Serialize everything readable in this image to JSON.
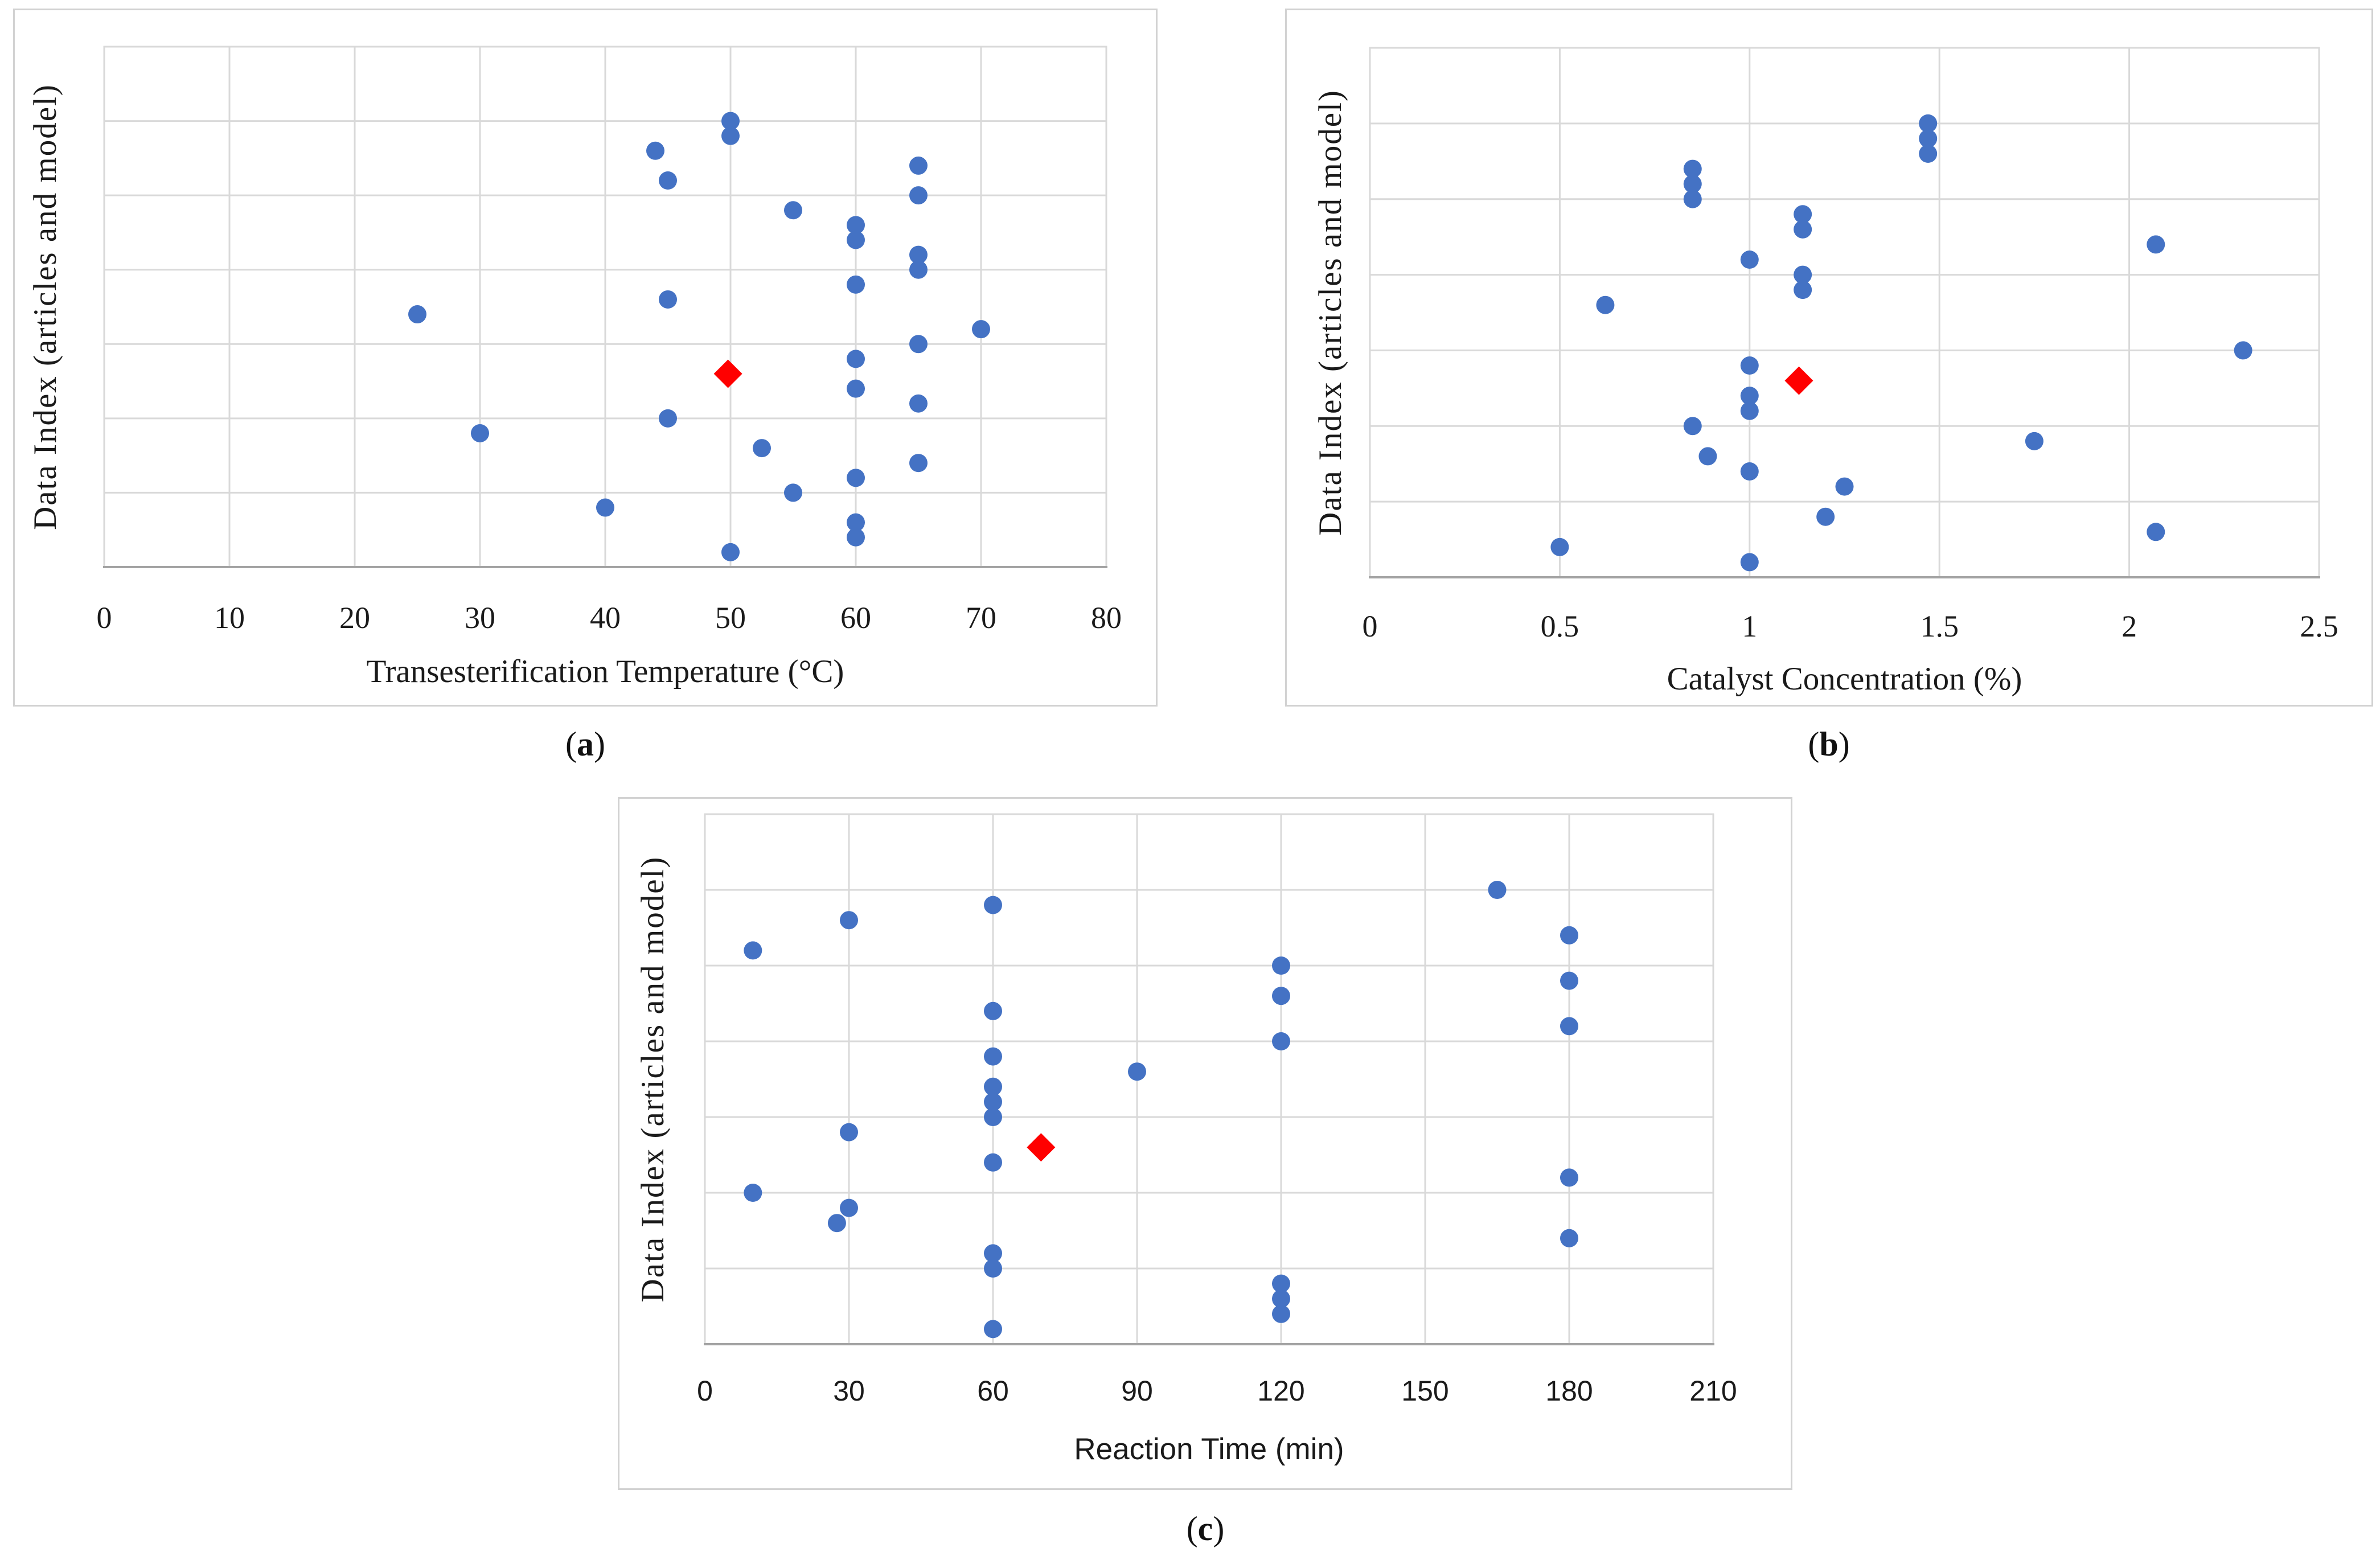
{
  "figure": {
    "colors": {
      "article_marker": "#4472C4",
      "model_marker": "#FF0000",
      "gridline": "#D9D9D9",
      "plot_border": "#D9D9D9",
      "axis_line": "#A3A3A3",
      "text": "#1A1A1A",
      "panel_border": "#D2D2D2"
    },
    "captions": [
      {
        "open": "(",
        "letter": "a",
        "close": ")"
      },
      {
        "open": "(",
        "letter": "b",
        "close": ")"
      },
      {
        "open": "(",
        "letter": "c",
        "close": ")"
      }
    ]
  },
  "chart_data": [
    {
      "id": "a",
      "type": "scatter",
      "title": "",
      "xlabel": "Transesterification Temperature (°C)",
      "ylabel": "Data Index (articles and model)",
      "xlim": [
        0,
        80
      ],
      "xticks": [
        0,
        10,
        20,
        30,
        40,
        50,
        60,
        70,
        80
      ],
      "ylim": [
        0,
        35
      ],
      "y_gridline_step": 5,
      "y_tick_labels_shown": false,
      "grid": true,
      "legend": "none",
      "series": [
        {
          "name": "articles",
          "marker": "circle",
          "color": "#4472C4",
          "points": [
            [
              50,
              30
            ],
            [
              50,
              29
            ],
            [
              44,
              28
            ],
            [
              65,
              27
            ],
            [
              45,
              26
            ],
            [
              65,
              25
            ],
            [
              55,
              24
            ],
            [
              60,
              23
            ],
            [
              60,
              22
            ],
            [
              65,
              21
            ],
            [
              65,
              20
            ],
            [
              60,
              19
            ],
            [
              45,
              18
            ],
            [
              25,
              17
            ],
            [
              70,
              16
            ],
            [
              65,
              15
            ],
            [
              60,
              14
            ],
            [
              60,
              12
            ],
            [
              65,
              11
            ],
            [
              45,
              10
            ],
            [
              30,
              9
            ],
            [
              52.5,
              8
            ],
            [
              65,
              7
            ],
            [
              60,
              6
            ],
            [
              55,
              5
            ],
            [
              40,
              4
            ],
            [
              60,
              3
            ],
            [
              60,
              2
            ],
            [
              50,
              1
            ]
          ]
        },
        {
          "name": "model",
          "marker": "diamond",
          "color": "#FF0000",
          "points": [
            [
              49.8,
              13
            ]
          ]
        }
      ]
    },
    {
      "id": "b",
      "type": "scatter",
      "title": "",
      "xlabel": "Catalyst Concentration (%)",
      "ylabel": "Data Index (articles and model)",
      "xlim": [
        0,
        2.5
      ],
      "xticks": [
        0,
        0.5,
        1,
        1.5,
        2,
        2.5
      ],
      "ylim": [
        0,
        35
      ],
      "y_gridline_step": 5,
      "y_tick_labels_shown": false,
      "grid": true,
      "legend": "none",
      "series": [
        {
          "name": "articles",
          "marker": "circle",
          "color": "#4472C4",
          "points": [
            [
              1.47,
              30
            ],
            [
              1.47,
              29
            ],
            [
              1.47,
              28
            ],
            [
              0.85,
              27
            ],
            [
              0.85,
              26
            ],
            [
              0.85,
              25
            ],
            [
              1.14,
              24
            ],
            [
              1.14,
              23
            ],
            [
              2.07,
              22
            ],
            [
              1.0,
              21
            ],
            [
              1.14,
              20
            ],
            [
              1.14,
              19
            ],
            [
              0.62,
              18
            ],
            [
              2.3,
              15
            ],
            [
              1.0,
              14
            ],
            [
              1.0,
              12
            ],
            [
              1.0,
              11
            ],
            [
              0.85,
              10
            ],
            [
              1.75,
              9
            ],
            [
              0.89,
              8
            ],
            [
              1.0,
              7
            ],
            [
              1.25,
              6
            ],
            [
              1.2,
              4
            ],
            [
              2.07,
              3
            ],
            [
              0.5,
              2
            ],
            [
              1.0,
              1
            ]
          ]
        },
        {
          "name": "model",
          "marker": "diamond",
          "color": "#FF0000",
          "points": [
            [
              1.13,
              13
            ]
          ]
        }
      ]
    },
    {
      "id": "c",
      "type": "scatter",
      "title": "",
      "xlabel": "Reaction Time (min)",
      "ylabel": "Data Index (articles and model)",
      "xlim": [
        0,
        210
      ],
      "xticks": [
        0,
        30,
        60,
        90,
        120,
        150,
        180,
        210
      ],
      "ylim": [
        0,
        35
      ],
      "y_gridline_step": 5,
      "y_tick_labels_shown": false,
      "grid": true,
      "legend": "none",
      "series": [
        {
          "name": "articles",
          "marker": "circle",
          "color": "#4472C4",
          "points": [
            [
              165,
              30
            ],
            [
              60,
              29
            ],
            [
              30,
              28
            ],
            [
              180,
              27
            ],
            [
              10,
              26
            ],
            [
              120,
              25
            ],
            [
              180,
              24
            ],
            [
              120,
              23
            ],
            [
              60,
              22
            ],
            [
              180,
              21
            ],
            [
              120,
              20
            ],
            [
              60,
              19
            ],
            [
              90,
              18
            ],
            [
              60,
              17
            ],
            [
              60,
              16
            ],
            [
              60,
              15
            ],
            [
              30,
              14
            ],
            [
              60,
              12
            ],
            [
              180,
              11
            ],
            [
              10,
              10
            ],
            [
              30,
              9
            ],
            [
              27.5,
              8
            ],
            [
              180,
              7
            ],
            [
              60,
              6
            ],
            [
              60,
              5
            ],
            [
              120,
              4
            ],
            [
              120,
              3
            ],
            [
              120,
              2
            ],
            [
              60,
              1
            ]
          ]
        },
        {
          "name": "model",
          "marker": "diamond",
          "color": "#FF0000",
          "points": [
            [
              70,
              13
            ]
          ]
        }
      ]
    }
  ]
}
